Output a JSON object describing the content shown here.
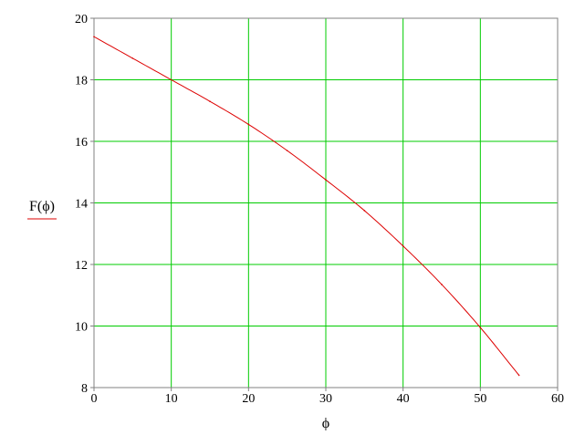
{
  "chart_data": {
    "type": "line",
    "xlabel": "ϕ",
    "ylabel": "",
    "xlim": [
      0,
      60
    ],
    "ylim": [
      8,
      20
    ],
    "x_ticks": [
      "0",
      "10",
      "20",
      "30",
      "40",
      "50",
      "60"
    ],
    "y_ticks": [
      "8",
      "10",
      "12",
      "14",
      "16",
      "18",
      "20"
    ],
    "grid": true,
    "legend_position": "left",
    "series": [
      {
        "name": "F(ϕ)",
        "color": "#dd0000",
        "x": [
          0,
          5,
          10,
          15,
          20,
          25,
          30,
          35,
          40,
          45,
          50,
          55
        ],
        "y": [
          19.4,
          18.7,
          18.0,
          17.3,
          16.55,
          15.7,
          14.75,
          13.75,
          12.6,
          11.35,
          9.95,
          8.4
        ]
      }
    ]
  },
  "colors": {
    "grid": "#00cc00",
    "axis": "#808080",
    "series": "#dd0000"
  }
}
